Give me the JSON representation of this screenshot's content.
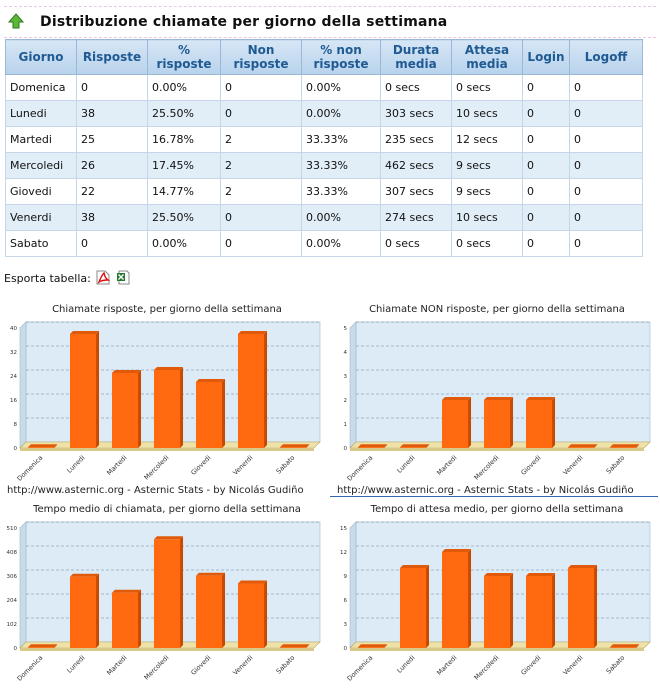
{
  "header": {
    "title": "Distribuzione chiamate per giorno della settimana"
  },
  "table": {
    "headers": [
      "Giorno",
      "Risposte",
      "% risposte",
      "Non risposte",
      "% non risposte",
      "Durata media",
      "Attesa media",
      "Login",
      "Logoff"
    ],
    "rows": [
      [
        "Domenica",
        "0",
        "0.00%",
        "0",
        "0.00%",
        "0 secs",
        "0 secs",
        "0",
        "0"
      ],
      [
        "Lunedi",
        "38",
        "25.50%",
        "0",
        "0.00%",
        "303 secs",
        "10 secs",
        "0",
        "0"
      ],
      [
        "Martedi",
        "25",
        "16.78%",
        "2",
        "33.33%",
        "235 secs",
        "12 secs",
        "0",
        "0"
      ],
      [
        "Mercoledi",
        "26",
        "17.45%",
        "2",
        "33.33%",
        "462 secs",
        "9 secs",
        "0",
        "0"
      ],
      [
        "Giovedi",
        "22",
        "14.77%",
        "2",
        "33.33%",
        "307 secs",
        "9 secs",
        "0",
        "0"
      ],
      [
        "Venerdi",
        "38",
        "25.50%",
        "0",
        "0.00%",
        "274 secs",
        "10 secs",
        "0",
        "0"
      ],
      [
        "Sabato",
        "0",
        "0.00%",
        "0",
        "0.00%",
        "0 secs",
        "0 secs",
        "0",
        "0"
      ]
    ]
  },
  "export": {
    "label": "Esporta tabella:",
    "pdf_icon": "pdf-icon",
    "excel_icon": "excel-icon"
  },
  "credit": "http://www.asternic.org - Asternic Stats - by Nicolás Gudiño",
  "colors": {
    "bar": "#ff6a10",
    "bar_dark": "#c84a00",
    "plot_bg": "#dcebf5",
    "floor": "#efe2a8"
  },
  "chart_data": [
    {
      "type": "bar",
      "title": "Chiamate risposte, per giorno della settimana",
      "categories": [
        "Domenica",
        "Lunedi",
        "Martedi",
        "Mercoledi",
        "Giovedi",
        "Venerdi",
        "Sabato"
      ],
      "values": [
        0,
        38,
        25,
        26,
        22,
        38,
        0
      ],
      "yticks": [
        "0",
        "8",
        "16",
        "24",
        "32",
        "40"
      ],
      "ylim": [
        0,
        40
      ],
      "grid": true
    },
    {
      "type": "bar",
      "title": "Chiamate NON risposte, per giorno della settimana",
      "categories": [
        "Domenica",
        "Lunedi",
        "Martedi",
        "Mercoledi",
        "Giovedi",
        "Venerdi",
        "Sabato"
      ],
      "values": [
        0,
        0,
        2,
        2,
        2,
        0,
        0
      ],
      "yticks": [
        "0",
        "1",
        "2",
        "3",
        "4",
        "5"
      ],
      "ylim": [
        0,
        5
      ],
      "grid": true
    },
    {
      "type": "bar",
      "title": "Tempo medio di chiamata, per giorno della settimana",
      "categories": [
        "Domenica",
        "Lunedi",
        "Martedi",
        "Mercoledi",
        "Giovedi",
        "Venerdi",
        "Sabato"
      ],
      "values": [
        0,
        303,
        235,
        462,
        307,
        274,
        0
      ],
      "yticks": [
        "0",
        "102",
        "204",
        "306",
        "408",
        "510"
      ],
      "ylim": [
        0,
        510
      ],
      "grid": true
    },
    {
      "type": "bar",
      "title": "Tempo di attesa medio, per giorno della settimana",
      "categories": [
        "Domenica",
        "Lunedi",
        "Martedi",
        "Mercoledi",
        "Giovedi",
        "Venerdi",
        "Sabato"
      ],
      "values": [
        0,
        10,
        12,
        9,
        9,
        10,
        0
      ],
      "yticks": [
        "0",
        "3",
        "6",
        "9",
        "12",
        "15"
      ],
      "ylim": [
        0,
        15
      ],
      "grid": true
    }
  ]
}
